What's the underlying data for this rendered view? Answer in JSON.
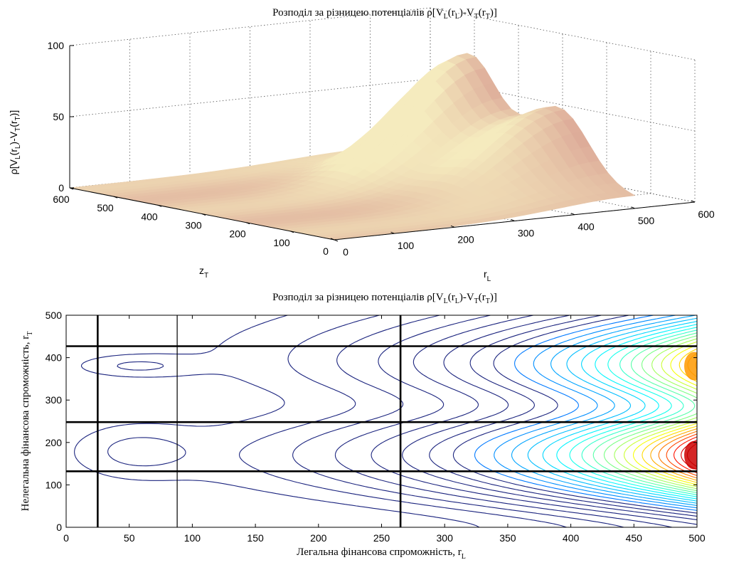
{
  "chart_data": [
    {
      "type": "surface",
      "title": "Розподіл за різницею потенціалів ρ[V_L(r_L)-V_T(r_T)]",
      "title_parts": {
        "main": "Розподіл за різницею потенціалів ρ[V",
        "sub1": "L",
        "mid1": "(r",
        "sub2": "L",
        "mid2": ")-V",
        "sub3": "T",
        "mid3": "(r",
        "sub4": "T",
        "end": ")]"
      },
      "zlabel": "ρ[V_L(r_L)-V_T(r_T)]",
      "zlabel_parts": {
        "a": "ρ[V",
        "b": "L",
        "c": "(r",
        "d": "L",
        "e": ")-V",
        "f": "T",
        "g": "(r",
        "h": "T",
        "i": ")]"
      },
      "xlabel": "z_T",
      "xlabel_parts": {
        "main": "z",
        "sub": "T"
      },
      "ylabel": "r_L",
      "ylabel_parts": {
        "main": "r",
        "sub": "L"
      },
      "x_ticks": [
        "0",
        "100",
        "200",
        "300",
        "400",
        "500",
        "600"
      ],
      "y_ticks": [
        "0",
        "100",
        "200",
        "300",
        "400",
        "500",
        "600"
      ],
      "z_ticks": [
        "0",
        "50",
        "100"
      ],
      "xlim": [
        0,
        600
      ],
      "ylim": [
        0,
        600
      ],
      "zlim": [
        0,
        100
      ],
      "peaks": [
        {
          "z_T": 170,
          "r_L": 500,
          "value": 58
        },
        {
          "z_T": 380,
          "r_L": 500,
          "value": 83
        }
      ],
      "grid": true,
      "colormap": "pink"
    },
    {
      "type": "contour",
      "title": "Розподіл за різницею потенціалів ρ[V_L(r_L)-V_T(r_T)]",
      "title_parts": {
        "main": "Розподіл за різницею потенціалів ρ[V",
        "sub1": "L",
        "mid1": "(r",
        "sub2": "L",
        "mid2": ")-V",
        "sub3": "T",
        "mid3": "(r",
        "sub4": "T",
        "end": ")]"
      },
      "xlabel": "Легальна фінансова спроможність, r_L",
      "xlabel_parts": {
        "main": "Легальна фінансова спроможність, r",
        "sub": "L"
      },
      "ylabel": "Нелегальна фінансова спроможність, r_T",
      "ylabel_parts": {
        "main": "Нелегальна фінансова спроможність, r",
        "sub": "T"
      },
      "xlim": [
        0,
        500
      ],
      "ylim": [
        0,
        500
      ],
      "x_ticks": [
        "0",
        "50",
        "100",
        "150",
        "200",
        "250",
        "300",
        "350",
        "400",
        "450",
        "500"
      ],
      "y_ticks": [
        "0",
        "100",
        "200",
        "300",
        "400",
        "500"
      ],
      "vertical_lines": [
        {
          "r_L": 25,
          "weight": "thick"
        },
        {
          "r_L": 88,
          "weight": "thin"
        },
        {
          "r_L": 265,
          "weight": "thick"
        }
      ],
      "horizontal_lines": [
        {
          "r_T": 132,
          "weight": "thick"
        },
        {
          "r_T": 248,
          "weight": "thick"
        },
        {
          "r_T": 427,
          "weight": "thick"
        }
      ],
      "field_peaks": [
        {
          "r_L": 500,
          "r_T": 170,
          "value": 83
        },
        {
          "r_L": 500,
          "r_T": 380,
          "value": 58
        }
      ],
      "contour_line_color": "#1a237e",
      "hot_color": "#cc0000"
    }
  ]
}
